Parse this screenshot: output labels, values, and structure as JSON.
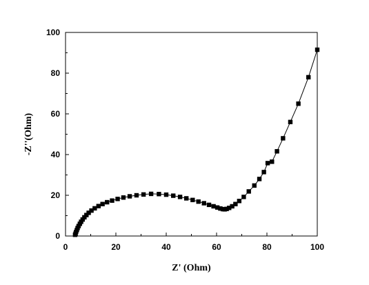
{
  "chart_data": {
    "type": "line",
    "xlabel": "Z' (Ohm)",
    "ylabel": "-Z''(Ohm)",
    "xlim": [
      0,
      100
    ],
    "ylim": [
      0,
      100
    ],
    "xticks": [
      0,
      20,
      40,
      60,
      80,
      100
    ],
    "yticks": [
      0,
      20,
      40,
      60,
      80,
      100
    ],
    "grid": false,
    "marker": "square",
    "color": "#000000",
    "series": [
      {
        "x": [
          3.8,
          4.0,
          4.2,
          4.5,
          4.8,
          5.2,
          5.7,
          6.2,
          6.8,
          7.5,
          8.3,
          9.2,
          10.3,
          11.6,
          13.1,
          14.7,
          16.5,
          18.5,
          20.7,
          23.0,
          25.5,
          28.2,
          31.0,
          34.0,
          37.1,
          40.0,
          42.8,
          45.5,
          48.0,
          50.5,
          52.8,
          55.0,
          57.0,
          58.8,
          60.3,
          61.5,
          62.5,
          63.2,
          64.0,
          65.0,
          66.2,
          67.5,
          69.0,
          70.8,
          72.8,
          75.0,
          77.0,
          78.8,
          80.3,
          82.0,
          84.0,
          86.4,
          89.3,
          92.5,
          96.5,
          100.0
        ],
        "y": [
          0.6,
          1.2,
          2.0,
          2.9,
          3.9,
          4.9,
          6.0,
          7.0,
          8.1,
          9.2,
          10.3,
          11.4,
          12.5,
          13.6,
          14.7,
          15.7,
          16.6,
          17.4,
          18.2,
          18.9,
          19.5,
          20.0,
          20.4,
          20.7,
          20.6,
          20.3,
          19.8,
          19.2,
          18.5,
          17.7,
          16.9,
          16.1,
          15.3,
          14.6,
          14.0,
          13.5,
          13.2,
          13.1,
          13.3,
          13.8,
          14.6,
          15.7,
          17.2,
          19.2,
          21.9,
          24.8,
          28.0,
          31.4,
          35.8,
          36.5,
          41.6,
          48.0,
          56.0,
          65.0,
          78.0,
          91.5
        ]
      }
    ]
  }
}
